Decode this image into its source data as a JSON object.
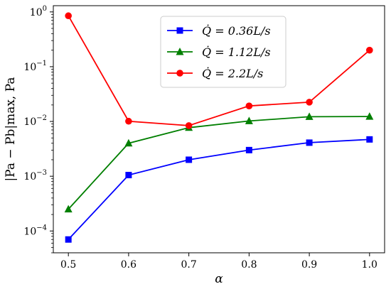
{
  "chart_data": {
    "type": "line",
    "x": [
      0.5,
      0.6,
      0.7,
      0.8,
      0.9,
      1.0
    ],
    "xlabel": "α",
    "ylabel": "|Pa − Pb|max, Pa",
    "xlim": [
      0.475,
      1.025
    ],
    "ylim": [
      4e-05,
      1.3
    ],
    "yscale": "log",
    "xticks": [
      "0.5",
      "0.6",
      "0.7",
      "0.8",
      "0.9",
      "1.0"
    ],
    "yticks": [
      {
        "value": 0.0001,
        "base": "10",
        "exp": "−4"
      },
      {
        "value": 0.001,
        "base": "10",
        "exp": "−3"
      },
      {
        "value": 0.01,
        "base": "10",
        "exp": "−2"
      },
      {
        "value": 0.1,
        "base": "10",
        "exp": "−1"
      },
      {
        "value": 1,
        "base": "10",
        "exp": "0"
      }
    ],
    "legend_position": "top-center",
    "series": [
      {
        "name": "Q̇ = 0.36L/s",
        "color": "#0000ff",
        "marker": "square",
        "values": [
          7e-05,
          0.00105,
          0.002,
          0.003,
          0.0041,
          0.0047
        ]
      },
      {
        "name": "Q̇ = 1.12L/s",
        "color": "#007f00",
        "marker": "triangle",
        "values": [
          0.00025,
          0.004,
          0.0077,
          0.0102,
          0.0122,
          0.0123
        ]
      },
      {
        "name": "Q̇ = 2.2L/s",
        "color": "#ff0000",
        "marker": "circle",
        "values": [
          0.85,
          0.0101,
          0.0084,
          0.0192,
          0.0225,
          0.2
        ]
      }
    ]
  }
}
